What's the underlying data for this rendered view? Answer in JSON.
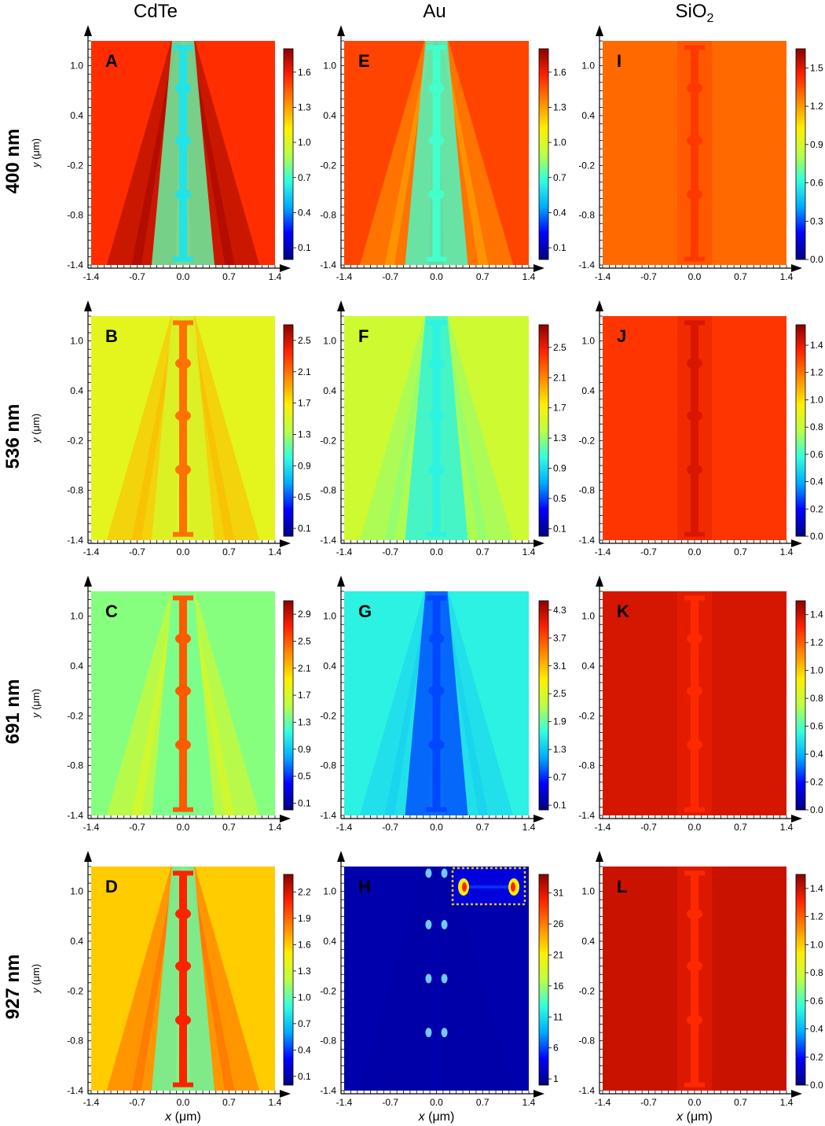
{
  "figure": {
    "column_titles": [
      {
        "text": "CdTe"
      },
      {
        "text": "Au"
      },
      {
        "base": "SiO",
        "sub": "2"
      }
    ],
    "row_titles": [
      "400 nm",
      "536 nm",
      "691 nm",
      "927 nm"
    ],
    "x_axis_label": {
      "italic": "x",
      "rest": " (μm)"
    },
    "y_axis_label": {
      "italic": "y",
      "rest": " (μm)"
    }
  },
  "chart_data": [
    {
      "panel": "A",
      "type": "heatmap",
      "material": "CdTe",
      "wavelength": "400 nm",
      "x_ticks": [
        "-1.4",
        "-0.7",
        "0.0",
        "0.7",
        "1.4"
      ],
      "y_ticks": [
        "1.0",
        "0.4",
        "-0.2",
        "-0.8",
        "-1.4"
      ],
      "xlim": [
        -1.4,
        1.4
      ],
      "ylim": [
        -1.4,
        1.3
      ],
      "colorbar_ticks": [
        "1.6",
        "1.3",
        "1.0",
        "0.7",
        "0.4",
        "0.1"
      ],
      "colorbar_range": [
        0.0,
        1.8
      ],
      "background_level": 1.55,
      "channel_level": 0.6
    },
    {
      "panel": "B",
      "type": "heatmap",
      "material": "CdTe",
      "wavelength": "536 nm",
      "x_ticks": [
        "-1.4",
        "-0.7",
        "0.0",
        "0.7",
        "1.4"
      ],
      "y_ticks": [
        "1.0",
        "0.4",
        "-0.2",
        "-0.8",
        "-1.4"
      ],
      "xlim": [
        -1.4,
        1.4
      ],
      "ylim": [
        -1.4,
        1.3
      ],
      "colorbar_ticks": [
        "2.5",
        "2.1",
        "1.7",
        "1.3",
        "0.9",
        "0.5",
        "0.1"
      ],
      "colorbar_range": [
        0.0,
        2.7
      ],
      "background_level": 1.55,
      "channel_level": 2.1
    },
    {
      "panel": "C",
      "type": "heatmap",
      "material": "CdTe",
      "wavelength": "691 nm",
      "x_ticks": [
        "-1.4",
        "-0.7",
        "0.0",
        "0.7",
        "1.4"
      ],
      "y_ticks": [
        "1.0",
        "0.4",
        "-0.2",
        "-0.8",
        "-1.4"
      ],
      "xlim": [
        -1.4,
        1.4
      ],
      "ylim": [
        -1.4,
        1.3
      ],
      "colorbar_ticks": [
        "2.9",
        "2.5",
        "2.1",
        "1.7",
        "1.3",
        "0.9",
        "0.5",
        "0.1"
      ],
      "colorbar_range": [
        0.0,
        3.1
      ],
      "background_level": 1.4,
      "channel_level": 2.5
    },
    {
      "panel": "D",
      "type": "heatmap",
      "material": "CdTe",
      "wavelength": "927 nm",
      "x_ticks": [
        "-1.4",
        "-0.7",
        "0.0",
        "0.7",
        "1.4"
      ],
      "y_ticks": [
        "1.0",
        "0.4",
        "-0.2",
        "-0.8",
        "-1.4"
      ],
      "xlim": [
        -1.4,
        1.4
      ],
      "ylim": [
        -1.4,
        1.3
      ],
      "colorbar_ticks": [
        "2.2",
        "1.9",
        "1.6",
        "1.3",
        "1.0",
        "0.7",
        "0.4",
        "0.1"
      ],
      "colorbar_range": [
        0.0,
        2.4
      ],
      "background_level": 1.6,
      "channel_level": 2.1
    },
    {
      "panel": "E",
      "type": "heatmap",
      "material": "Au",
      "wavelength": "400 nm",
      "x_ticks": [
        "-1.4",
        "-0.7",
        "0.0",
        "0.7",
        "1.4"
      ],
      "y_ticks": [
        "1.0",
        "0.4",
        "-0.2",
        "-0.8",
        "-1.4"
      ],
      "xlim": [
        -1.4,
        1.4
      ],
      "ylim": [
        -1.4,
        1.3
      ],
      "colorbar_ticks": [
        "1.6",
        "1.3",
        "1.0",
        "0.7",
        "0.4",
        "0.1"
      ],
      "colorbar_range": [
        0.0,
        1.8
      ],
      "background_level": 1.5,
      "channel_level": 0.7
    },
    {
      "panel": "F",
      "type": "heatmap",
      "material": "Au",
      "wavelength": "536 nm",
      "x_ticks": [
        "-1.4",
        "-0.7",
        "0.0",
        "0.7",
        "1.4"
      ],
      "y_ticks": [
        "1.0",
        "0.4",
        "-0.2",
        "-0.8",
        "-1.4"
      ],
      "xlim": [
        -1.4,
        1.4
      ],
      "ylim": [
        -1.4,
        1.3
      ],
      "colorbar_ticks": [
        "2.5",
        "2.1",
        "1.7",
        "1.3",
        "0.9",
        "0.5",
        "0.1"
      ],
      "colorbar_range": [
        0.0,
        2.8
      ],
      "background_level": 1.5,
      "channel_level": 1.0
    },
    {
      "panel": "G",
      "type": "heatmap",
      "material": "Au",
      "wavelength": "691 nm",
      "x_ticks": [
        "-1.4",
        "-0.7",
        "0.0",
        "0.7",
        "1.4"
      ],
      "y_ticks": [
        "1.0",
        "0.4",
        "-0.2",
        "-0.8",
        "-1.4"
      ],
      "xlim": [
        -1.4,
        1.4
      ],
      "ylim": [
        -1.4,
        1.3
      ],
      "colorbar_ticks": [
        "4.3",
        "3.7",
        "3.1",
        "2.5",
        "1.9",
        "1.3",
        "0.7",
        "0.1"
      ],
      "colorbar_range": [
        0.0,
        4.5
      ],
      "background_level": 1.6,
      "channel_level": 0.8
    },
    {
      "panel": "H",
      "type": "heatmap",
      "material": "Au",
      "wavelength": "927 nm",
      "x_ticks": [
        "-1.4",
        "-0.7",
        "0.0",
        "0.7",
        "1.4"
      ],
      "y_ticks": [
        "1.0",
        "0.4",
        "-0.2",
        "-0.8",
        "-1.4"
      ],
      "xlim": [
        -1.4,
        1.4
      ],
      "ylim": [
        -1.4,
        1.3
      ],
      "colorbar_ticks": [
        "31",
        "26",
        "21",
        "16",
        "11",
        "6",
        "1"
      ],
      "colorbar_range": [
        0,
        34
      ],
      "background_level": 1.5,
      "channel_level": 2,
      "inset": true
    },
    {
      "panel": "I",
      "type": "heatmap",
      "material": "SiO2",
      "wavelength": "400 nm",
      "x_ticks": [
        "-1.4",
        "-0.7",
        "0.0",
        "0.7",
        "1.4"
      ],
      "y_ticks": [
        "1.0",
        "0.4",
        "-0.2",
        "-0.8",
        "-1.4"
      ],
      "xlim": [
        -1.4,
        1.4
      ],
      "ylim": [
        -1.4,
        1.3
      ],
      "colorbar_ticks": [
        "1.5",
        "1.2",
        "0.9",
        "0.6",
        "0.3",
        "0.0"
      ],
      "colorbar_range": [
        0.0,
        1.65
      ],
      "background_level": 1.3,
      "channel_level": 1.4
    },
    {
      "panel": "J",
      "type": "heatmap",
      "material": "SiO2",
      "wavelength": "536 nm",
      "x_ticks": [
        "-1.4",
        "-0.7",
        "0.0",
        "0.7",
        "1.4"
      ],
      "y_ticks": [
        "1.0",
        "0.4",
        "-0.2",
        "-0.8",
        "-1.4"
      ],
      "xlim": [
        -1.4,
        1.4
      ],
      "ylim": [
        -1.4,
        1.3
      ],
      "colorbar_ticks": [
        "1.4",
        "1.2",
        "1.0",
        "0.8",
        "0.6",
        "0.4",
        "0.2",
        "0.0"
      ],
      "colorbar_range": [
        0.0,
        1.55
      ],
      "background_level": 1.32,
      "channel_level": 1.42
    },
    {
      "panel": "K",
      "type": "heatmap",
      "material": "SiO2",
      "wavelength": "691 nm",
      "x_ticks": [
        "-1.4",
        "-0.7",
        "0.0",
        "0.7",
        "1.4"
      ],
      "y_ticks": [
        "1.0",
        "0.4",
        "-0.2",
        "-0.8",
        "-1.4"
      ],
      "xlim": [
        -1.4,
        1.4
      ],
      "ylim": [
        -1.4,
        1.3
      ],
      "colorbar_ticks": [
        "1.4",
        "1.2",
        "1.0",
        "0.8",
        "0.6",
        "0.4",
        "0.2",
        "0.0"
      ],
      "colorbar_range": [
        0.0,
        1.5
      ],
      "background_level": 1.38,
      "channel_level": 1.3
    },
    {
      "panel": "L",
      "type": "heatmap",
      "material": "SiO2",
      "wavelength": "927 nm",
      "x_ticks": [
        "-1.4",
        "-0.7",
        "0.0",
        "0.7",
        "1.4"
      ],
      "y_ticks": [
        "1.0",
        "0.4",
        "-0.2",
        "-0.8",
        "-1.4"
      ],
      "xlim": [
        -1.4,
        1.4
      ],
      "ylim": [
        -1.4,
        1.3
      ],
      "colorbar_ticks": [
        "1.4",
        "1.2",
        "1.0",
        "0.8",
        "0.6",
        "0.4",
        "0.2",
        "0.0"
      ],
      "colorbar_range": [
        0.0,
        1.5
      ],
      "background_level": 1.4,
      "channel_level": 1.3
    }
  ],
  "colors": {
    "jet_stops": [
      "#00007f",
      "#0000ff",
      "#00aaff",
      "#33ffdd",
      "#bbff44",
      "#ffee00",
      "#ff8800",
      "#ff2200",
      "#8b0000"
    ],
    "inset_border": "#e6c619"
  }
}
